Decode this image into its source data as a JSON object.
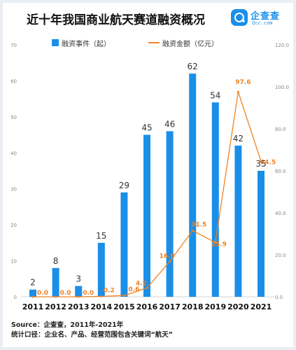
{
  "title": "近十年我国商业航天赛道融资概况",
  "logo": {
    "name": "企查查",
    "domain": "Qcc.com"
  },
  "colors": {
    "bars": "#1a8fe8",
    "line": "#f08223",
    "bar_labels": "#333333",
    "line_labels": "#f08223"
  },
  "footer": {
    "source": "Source：企查查，2011年-2021年",
    "scope": "统计口径：企业名、产品、经营范围包含关键词“航天”"
  },
  "chart_data": {
    "type": "bar",
    "title": "近十年我国商业航天赛道融资概况",
    "categories": [
      "2011",
      "2012",
      "2013",
      "2014",
      "2015",
      "2016",
      "2017",
      "2018",
      "2019",
      "2020",
      "2021"
    ],
    "series": [
      {
        "name": "融资事件（起）",
        "type": "bar",
        "axis": "left",
        "values": [
          2,
          8,
          3,
          15,
          29,
          45,
          46,
          62,
          54,
          42,
          35
        ]
      },
      {
        "name": "融资金额（亿元）",
        "type": "line",
        "axis": "right",
        "values": [
          0.0,
          0.0,
          0.0,
          0.2,
          0.6,
          4.2,
          16.8,
          31.5,
          25.9,
          97.6,
          64.5
        ]
      }
    ],
    "left_axis": {
      "ylim": [
        0,
        70
      ],
      "ticks": [
        "0",
        "10",
        "20",
        "30",
        "40",
        "50",
        "60",
        "70"
      ]
    },
    "right_axis": {
      "ylim": [
        0,
        120
      ],
      "ticks": [
        "0.0",
        "20.0",
        "40.0",
        "60.0",
        "80.0",
        "100.0",
        "120.0"
      ]
    },
    "legend_position": "top-center",
    "grid": false
  }
}
